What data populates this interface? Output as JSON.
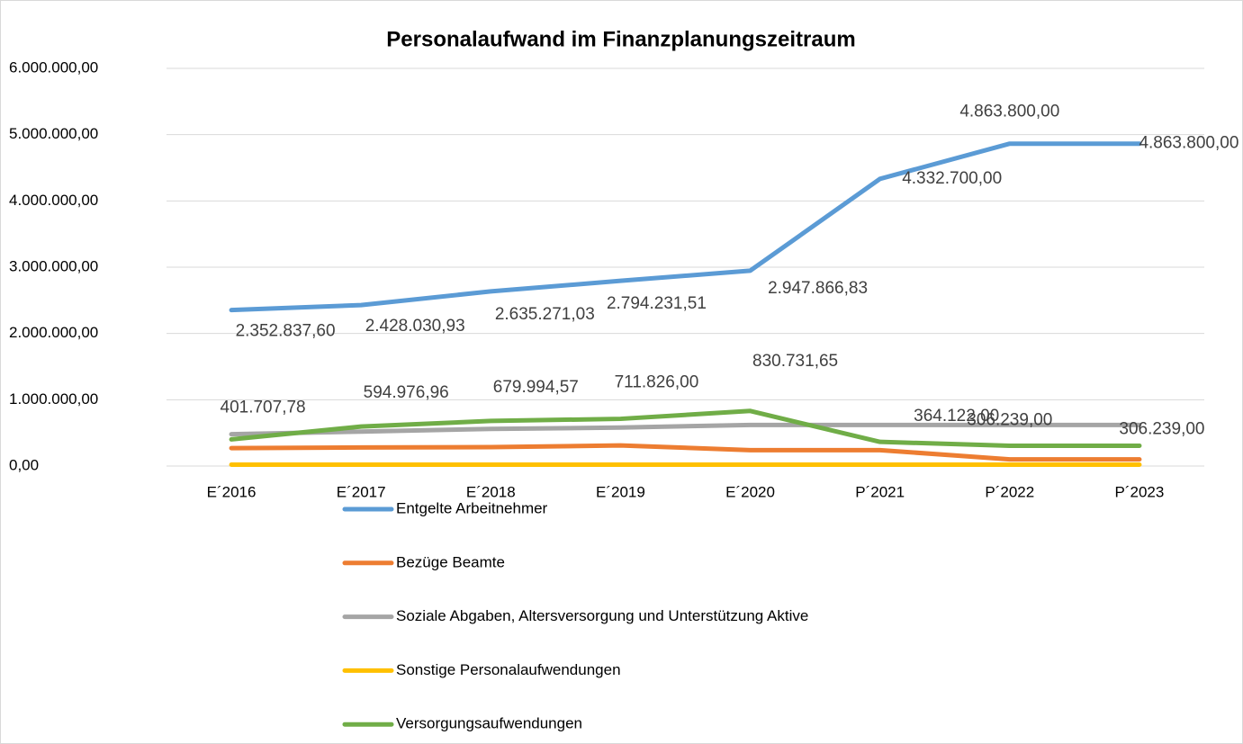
{
  "chart_data": {
    "type": "line",
    "title": "Personalaufwand im Finanzplanungszeitraum",
    "categories": [
      "E´2016",
      "E´2017",
      "E´2018",
      "E´2019",
      "E´2020",
      "P´2021",
      "P´2022",
      "P´2023"
    ],
    "ylim": [
      0,
      6000000
    ],
    "yticks": [
      {
        "value": 0,
        "label": "0,00"
      },
      {
        "value": 1000000,
        "label": "1.000.000,00"
      },
      {
        "value": 2000000,
        "label": "2.000.000,00"
      },
      {
        "value": 3000000,
        "label": "3.000.000,00"
      },
      {
        "value": 4000000,
        "label": "4.000.000,00"
      },
      {
        "value": 5000000,
        "label": "5.000.000,00"
      },
      {
        "value": 6000000,
        "label": "6.000.000,00"
      }
    ],
    "grid": true,
    "legend": "bottom",
    "series": [
      {
        "name": "Entgelte Arbeitnehmer",
        "color": "#5b9bd5",
        "values": [
          2352837.6,
          2428030.93,
          2635271.03,
          2794231.51,
          2947866.83,
          4332700.0,
          4863800.0,
          4863800.0
        ],
        "value_labels": [
          "2.352.837,60",
          "2.428.030,93",
          "2.635.271,03",
          "2.794.231,51",
          "2.947.866,83",
          "4.332.700,00",
          "4.863.800,00",
          "4.863.800,00"
        ]
      },
      {
        "name": "Bezüge Beamte",
        "color": "#ed7d31",
        "values": [
          270000,
          280000,
          285000,
          310000,
          240000,
          240000,
          100000,
          100000
        ]
      },
      {
        "name": "Soziale Abgaben, Altersversorgung und Unterstützung Aktive",
        "color": "#a5a5a5",
        "values": [
          480000,
          520000,
          560000,
          580000,
          620000,
          620000,
          620000,
          620000
        ]
      },
      {
        "name": "Sonstige Personalaufwendungen",
        "color": "#ffc000",
        "values": [
          20000,
          20000,
          20000,
          20000,
          20000,
          20000,
          20000,
          20000
        ]
      },
      {
        "name": "Versorgungsaufwendungen",
        "color": "#70ad47",
        "values": [
          401707.78,
          594976.96,
          679994.57,
          711826.0,
          830731.65,
          364122.0,
          306239.0,
          306239.0
        ],
        "value_labels": [
          "401.707,78",
          "594.976,96",
          "679.994,57",
          "711.826,00",
          "830.731,65",
          "364.122,00",
          "306.239,00",
          "306.239,00"
        ]
      }
    ]
  }
}
